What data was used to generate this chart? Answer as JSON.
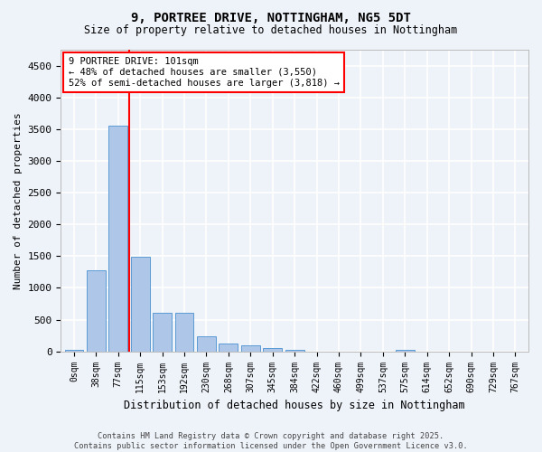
{
  "title_line1": "9, PORTREE DRIVE, NOTTINGHAM, NG5 5DT",
  "title_line2": "Size of property relative to detached houses in Nottingham",
  "xlabel": "Distribution of detached houses by size in Nottingham",
  "ylabel": "Number of detached properties",
  "bar_values": [
    30,
    1270,
    3560,
    1490,
    610,
    610,
    240,
    130,
    100,
    50,
    30,
    0,
    0,
    0,
    0,
    30,
    0,
    0,
    0,
    0,
    0
  ],
  "bar_labels": [
    "0sqm",
    "38sqm",
    "77sqm",
    "115sqm",
    "153sqm",
    "192sqm",
    "230sqm",
    "268sqm",
    "307sqm",
    "345sqm",
    "384sqm",
    "422sqm",
    "460sqm",
    "499sqm",
    "537sqm",
    "575sqm",
    "614sqm",
    "652sqm",
    "690sqm",
    "729sqm",
    "767sqm"
  ],
  "bar_color": "#aec6e8",
  "bar_edge_color": "#5b9bd5",
  "vline_x": 2.5,
  "vline_color": "red",
  "ylim": [
    0,
    4750
  ],
  "yticks": [
    0,
    500,
    1000,
    1500,
    2000,
    2500,
    3000,
    3500,
    4000,
    4500
  ],
  "annotation_text": "9 PORTREE DRIVE: 101sqm\n← 48% of detached houses are smaller (3,550)\n52% of semi-detached houses are larger (3,818) →",
  "footer_text": "Contains HM Land Registry data © Crown copyright and database right 2025.\nContains public sector information licensed under the Open Government Licence v3.0.",
  "background_color": "#eef2f9",
  "grid_color": "white"
}
